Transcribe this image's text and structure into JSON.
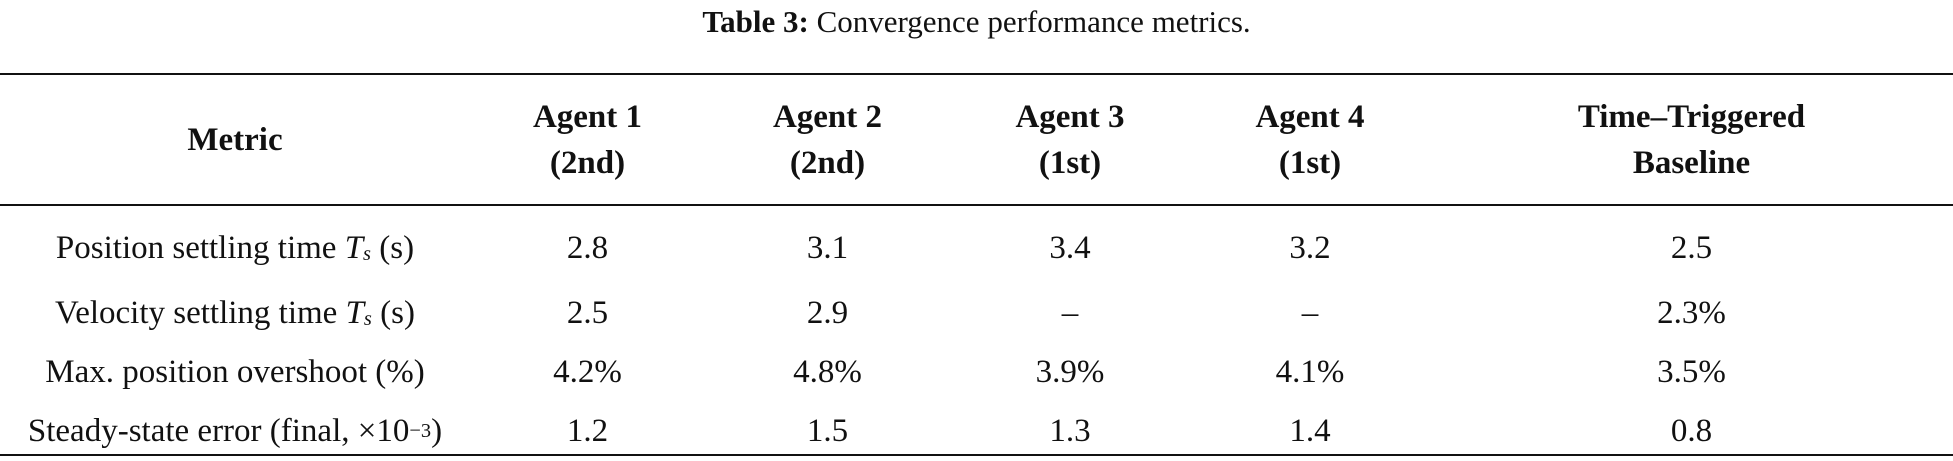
{
  "caption": {
    "label": "Table 3:",
    "text": "Convergence performance metrics."
  },
  "table": {
    "headers": [
      {
        "line1": "Metric",
        "line2": ""
      },
      {
        "line1": "Agent 1",
        "line2": "(2nd)"
      },
      {
        "line1": "Agent 2",
        "line2": "(2nd)"
      },
      {
        "line1": "Agent 3",
        "line2": "(1st)"
      },
      {
        "line1": "Agent 4",
        "line2": "(1st)"
      },
      {
        "line1": "Time–Triggered",
        "line2": "Baseline"
      }
    ],
    "rows": [
      {
        "metric": {
          "pre": "Position settling time ",
          "var": "T",
          "sub": "s",
          "post": " (s)"
        },
        "values": [
          "2.8",
          "3.1",
          "3.4",
          "3.2",
          "2.5"
        ]
      },
      {
        "metric": {
          "pre": "Velocity settling time ",
          "var": "T",
          "sub": "s",
          "post": " (s)"
        },
        "values": [
          "2.5",
          "2.9",
          "–",
          "–",
          "2.3%"
        ]
      },
      {
        "metric": {
          "pre": "Max. position overshoot (%)"
        },
        "values": [
          "4.2%",
          "4.8%",
          "3.9%",
          "4.1%",
          "3.5%"
        ]
      },
      {
        "metric": {
          "pre": "Steady-state error (final, ×10",
          "sup": "−3",
          "post": ")"
        },
        "values": [
          "1.2",
          "1.5",
          "1.3",
          "1.4",
          "0.8"
        ]
      }
    ]
  }
}
